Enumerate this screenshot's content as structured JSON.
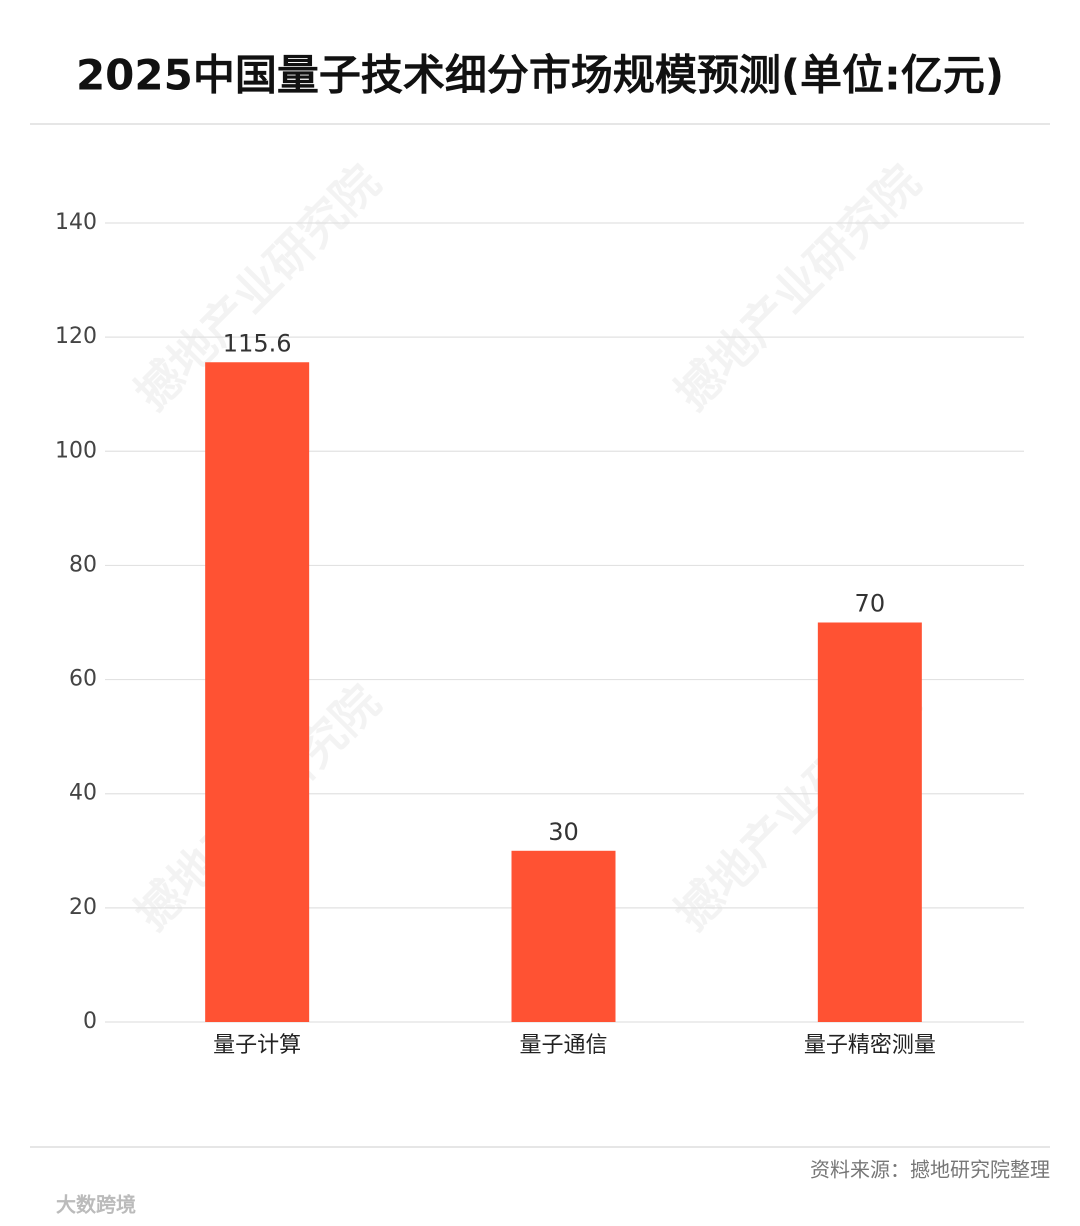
{
  "chart_data": {
    "type": "bar",
    "title": "2025中国量子技术细分市场规模预测(单位:亿元)",
    "categories": [
      "量子计算",
      "量子通信",
      "量子精密测量"
    ],
    "values": [
      115.6,
      30,
      70
    ],
    "color": "#ff5233",
    "ylim": [
      0,
      140
    ],
    "yticks": [
      0,
      20,
      40,
      60,
      80,
      100,
      120,
      140
    ],
    "grid": true,
    "source": "资料来源：撼地研究院整理",
    "watermark": "撼地产业研究院",
    "logo": "大数跨境"
  }
}
